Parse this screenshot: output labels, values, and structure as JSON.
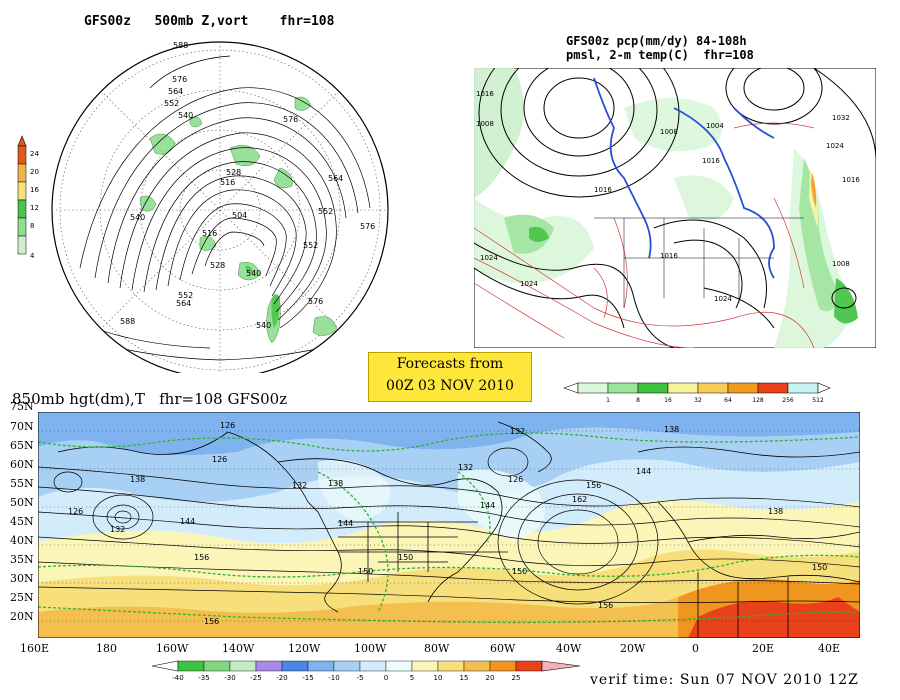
{
  "titles": {
    "polar": "GFS00z   500mb Z,vort    fhr=108",
    "right_line1": "GFS00z pcp(mm/dy) 84-108h",
    "right_line2": "pmsl, 2-m temp(C)  fhr=108",
    "bottom": "850mb hgt(dm),T   fhr=108 GFS00z"
  },
  "forecast_box": {
    "line1": "Forecasts from",
    "line2": "00Z 03 NOV 2010"
  },
  "verif_time": "verif time: Sun 07 NOV 2010 12Z",
  "vort_colorbar": {
    "labels": [
      "24",
      "20",
      "16",
      "12",
      "8",
      "4"
    ],
    "colors": [
      "#e05a1a",
      "#f2b24a",
      "#f7e27a",
      "#4cc44c",
      "#8ede8e",
      "#cfeecf"
    ]
  },
  "pcp_colorbar": {
    "labels": [
      "1",
      "8",
      "16",
      "32",
      "64",
      "128",
      "256",
      "512"
    ],
    "colors": [
      "#d9f7d9",
      "#9ce49c",
      "#3fc23f",
      "#f7f39c",
      "#f5cf5a",
      "#f29a1f",
      "#e9421a",
      "#c8f2f2"
    ]
  },
  "temp_colorbar": {
    "labels": [
      "-40",
      "-35",
      "-30",
      "-25",
      "-20",
      "-15",
      "-10",
      "-5",
      "0",
      "5",
      "10",
      "15",
      "20",
      "25"
    ],
    "colors": [
      "#3fc23f",
      "#7fd87f",
      "#c2ecc2",
      "#a98ae6",
      "#4a86e6",
      "#7fb3f0",
      "#a8d0f5",
      "#d3ecfb",
      "#eefcfc",
      "#fbf6b8",
      "#f7df7c",
      "#f3bf4e",
      "#f0951e",
      "#e9421a",
      "#f7b0b8"
    ]
  },
  "polar_labels": [
    "588",
    "576",
    "564",
    "552",
    "540",
    "576",
    "564",
    "552",
    "576",
    "528",
    "516",
    "504",
    "540",
    "516",
    "528",
    "552",
    "540",
    "588",
    "552",
    "564",
    "576",
    "540"
  ],
  "right_labels": [
    "1016",
    "1008",
    "1024",
    "1004",
    "1032",
    "1024",
    "1016",
    "1016",
    "1016",
    "1024",
    "1008",
    "1024",
    "1008",
    "1016"
  ],
  "bottom_latitudes": [
    "75N",
    "70N",
    "65N",
    "60N",
    "55N",
    "50N",
    "45N",
    "40N",
    "35N",
    "30N",
    "25N",
    "20N"
  ],
  "bottom_longitudes": [
    "160E",
    "180",
    "160W",
    "140W",
    "120W",
    "100W",
    "80W",
    "60W",
    "40W",
    "20W",
    "0",
    "20E",
    "40E"
  ],
  "bottom_contour_labels": [
    "126",
    "126",
    "126",
    "132",
    "138",
    "132",
    "138",
    "144",
    "156",
    "150",
    "144",
    "156",
    "150",
    "156",
    "138",
    "126",
    "132",
    "144",
    "132",
    "150",
    "162",
    "156",
    "144",
    "150",
    "138"
  ]
}
